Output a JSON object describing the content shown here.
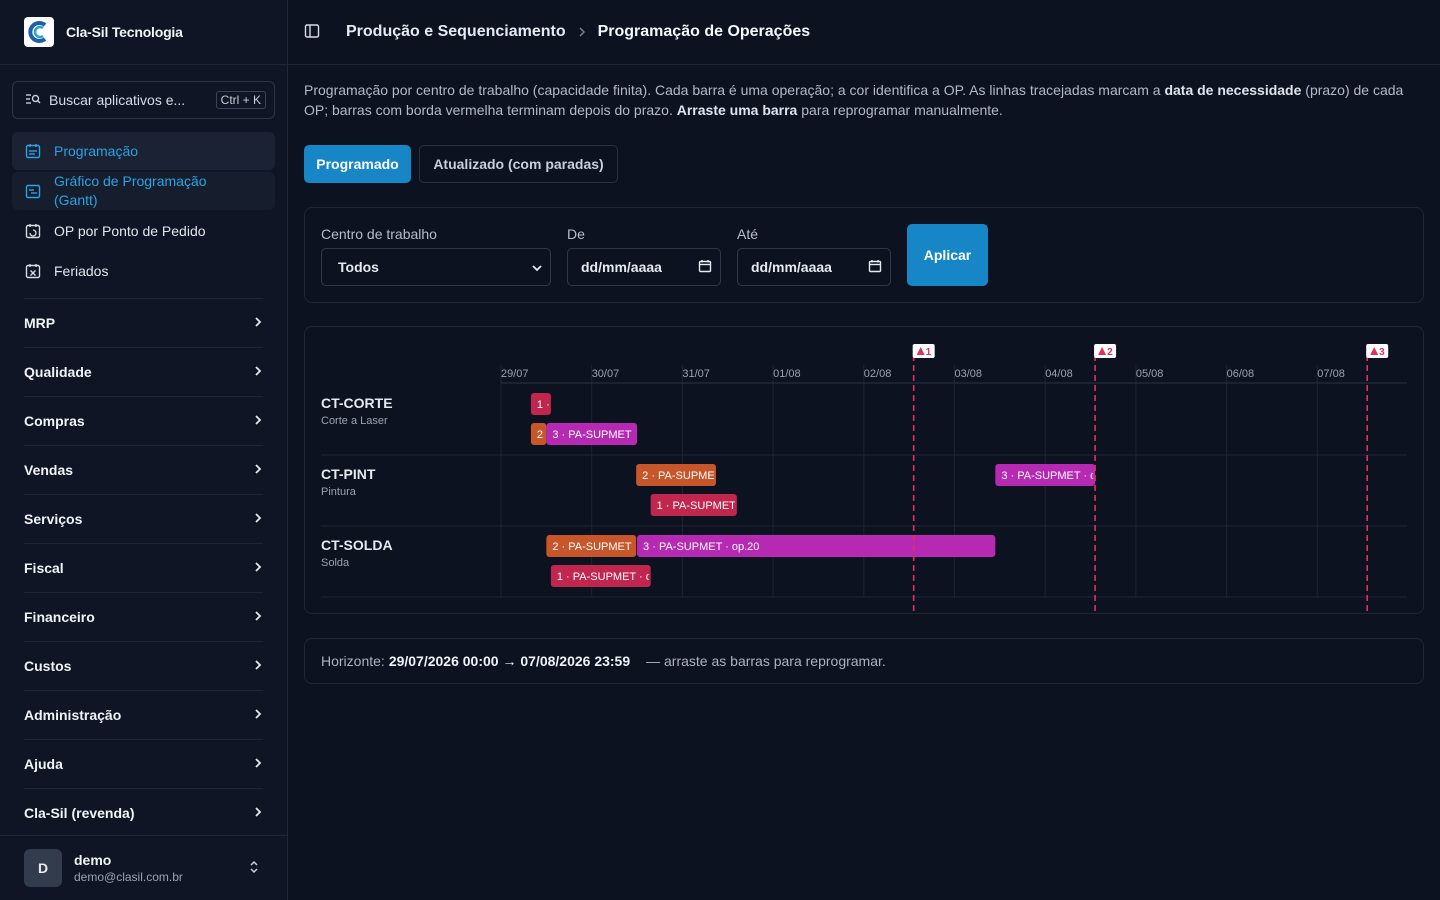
{
  "brand": {
    "name": "Cla-Sil Tecnologia"
  },
  "search": {
    "placeholder": "Buscar aplicativos e...",
    "shortcut": "Ctrl + K"
  },
  "nav": {
    "items": [
      {
        "label": "Programação",
        "icon": "calendar-list-icon"
      },
      {
        "label": "Gráfico de Programação (Gantt)",
        "icon": "gantt-icon"
      },
      {
        "label": "OP por Ponto de Pedido",
        "icon": "calendar-refresh-icon"
      },
      {
        "label": "Feriados",
        "icon": "calendar-x-icon"
      }
    ],
    "sections": [
      "MRP",
      "Qualidade",
      "Compras",
      "Vendas",
      "Serviços",
      "Fiscal",
      "Financeiro",
      "Custos",
      "Administração",
      "Ajuda",
      "Cla-Sil (revenda)"
    ]
  },
  "user": {
    "initial": "D",
    "name": "demo",
    "email": "demo@clasil.com.br"
  },
  "breadcrumb": {
    "parent": "Produção e Sequenciamento",
    "current": "Programação de Operações"
  },
  "description": {
    "p1": "Programação por centro de trabalho (capacidade finita). Cada barra é uma operação; a cor identifica a OP. As linhas tracejadas marcam a ",
    "b1": "data de necessidade",
    "p2": " (prazo) de cada OP; barras com borda vermelha terminam depois do prazo. ",
    "b2": "Arraste uma barra",
    "p3": " para reprogramar manualmente."
  },
  "tabs": {
    "scheduled": "Programado",
    "updated": "Atualizado (com paradas)"
  },
  "filters": {
    "work_center_label": "Centro de trabalho",
    "work_center_value": "Todos",
    "from_label": "De",
    "from_value": "dd/mm/aaaa",
    "to_label": "Até",
    "to_value": "dd/mm/aaaa",
    "apply": "Aplicar"
  },
  "gantt": {
    "dates": [
      "29/07",
      "30/07",
      "31/07",
      "01/08",
      "02/08",
      "03/08",
      "04/08",
      "05/08",
      "06/08",
      "07/08"
    ],
    "deadlines": [
      {
        "label": "1",
        "day": 4.55
      },
      {
        "label": "2",
        "day": 6.55
      },
      {
        "label": "3",
        "day": 9.55
      }
    ],
    "work_centers": [
      {
        "code": "CT-CORTE",
        "name": "Corte a Laser"
      },
      {
        "code": "CT-PINT",
        "name": "Pintura"
      },
      {
        "code": "CT-SOLDA",
        "name": "Solda"
      }
    ],
    "op_colors": {
      "1": "#c1264e",
      "2": "#c8562b",
      "3": "#b62ab3"
    },
    "bars": [
      {
        "row": 0,
        "lane": 0,
        "op": "1",
        "start": 0.33,
        "end": 0.55,
        "label": "1 ·"
      },
      {
        "row": 0,
        "lane": 1,
        "op": "2",
        "start": 0.33,
        "end": 0.5,
        "label": "2"
      },
      {
        "row": 0,
        "lane": 1,
        "op": "3",
        "start": 0.5,
        "end": 1.5,
        "label": "3 · PA-SUPMET"
      },
      {
        "row": 1,
        "lane": 0,
        "op": "2",
        "start": 1.49,
        "end": 2.37,
        "label": "2 · PA-SUPMET"
      },
      {
        "row": 1,
        "lane": 1,
        "op": "1",
        "start": 1.65,
        "end": 2.6,
        "label": "1 · PA-SUPMET"
      },
      {
        "row": 1,
        "lane": 0,
        "op": "3",
        "start": 5.45,
        "end": 6.55,
        "label": "3 · PA-SUPMET · c"
      },
      {
        "row": 2,
        "lane": 0,
        "op": "2",
        "start": 0.5,
        "end": 1.49,
        "label": "2 · PA-SUPMET"
      },
      {
        "row": 2,
        "lane": 0,
        "op": "3",
        "start": 1.5,
        "end": 5.45,
        "label": "3 · PA-SUPMET · op.20"
      },
      {
        "row": 2,
        "lane": 1,
        "op": "1",
        "start": 0.55,
        "end": 1.65,
        "label": "1 · PA-SUPMET · c"
      }
    ]
  },
  "footer": {
    "prefix": "Horizonte: ",
    "range": "29/07/2026 00:00 → 07/08/2026 23:59",
    "suffix": " — arraste as barras para reprogramar."
  }
}
